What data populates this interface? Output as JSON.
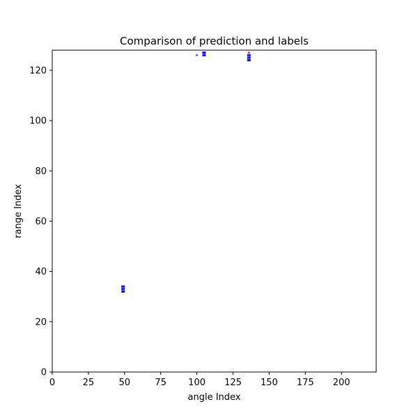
{
  "chart_data": {
    "type": "scatter",
    "title": "Comparison of prediction and labels",
    "xlabel": "angle Index",
    "ylabel": "range Index",
    "xlim": [
      0,
      224
    ],
    "ylim": [
      0,
      128
    ],
    "xticks": [
      0,
      25,
      50,
      75,
      100,
      125,
      150,
      175,
      200
    ],
    "yticks": [
      0,
      20,
      40,
      60,
      80,
      100,
      120
    ],
    "grid": false,
    "series": [
      {
        "color": "#0000ff",
        "marker": "square",
        "points": [
          {
            "x": 49,
            "y": 32
          },
          {
            "x": 49,
            "y": 33
          },
          {
            "x": 49,
            "y": 34
          },
          {
            "x": 105,
            "y": 126
          },
          {
            "x": 105,
            "y": 127
          },
          {
            "x": 136,
            "y": 124
          },
          {
            "x": 136,
            "y": 125
          },
          {
            "x": 136,
            "y": 126
          }
        ]
      },
      {
        "color": "#ff0000",
        "marker": "dot",
        "points": [
          {
            "x": 100,
            "y": 126
          },
          {
            "x": 136,
            "y": 127
          }
        ]
      }
    ]
  }
}
